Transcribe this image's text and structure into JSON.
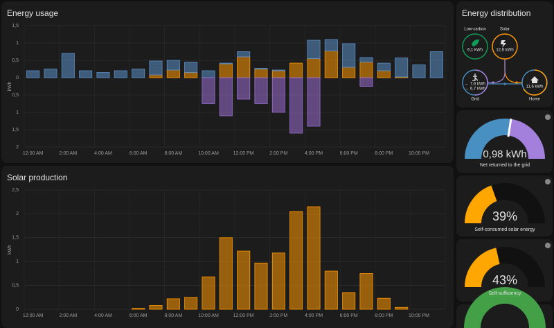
{
  "chart_data": [
    {
      "type": "bar",
      "title": "Energy usage",
      "ylabel": "kWh",
      "stacked": true,
      "grid": true,
      "categories": [
        "12:00 AM",
        null,
        "2:00 AM",
        null,
        "4:00 AM",
        null,
        "6:00 AM",
        null,
        "8:00 AM",
        null,
        "10:00 AM",
        null,
        "12:00 PM",
        null,
        "2:00 PM",
        null,
        "4:00 PM",
        null,
        "6:00 PM",
        null,
        "8:00 PM",
        null,
        "10:00 PM",
        null
      ],
      "series": [
        {
          "color": "#ff9800",
          "values": [
            0,
            0,
            0,
            0,
            0,
            0,
            0,
            0.08,
            0.22,
            0.15,
            0,
            0.4,
            0.6,
            0.25,
            0.2,
            0.42,
            0.55,
            0.77,
            0.3,
            0.45,
            0.2,
            0.02,
            0,
            0
          ]
        },
        {
          "color": "#5b8fc7",
          "values": [
            0.2,
            0.25,
            0.7,
            0.2,
            0.15,
            0.2,
            0.25,
            0.4,
            0.28,
            0.3,
            0.2,
            0.02,
            0.15,
            0.02,
            0.02,
            0,
            0.53,
            0.33,
            0.68,
            0.13,
            0.22,
            0.55,
            0.37,
            0.75
          ]
        },
        {
          "color": "#9b6fd4",
          "values": [
            0,
            0,
            0,
            0,
            0,
            0,
            0,
            0,
            0,
            0,
            -0.75,
            -1.1,
            -0.62,
            -0.75,
            -1.0,
            -1.6,
            -1.4,
            0,
            0,
            -0.25,
            0,
            0,
            0,
            0
          ]
        }
      ],
      "ylim": [
        -2,
        1.5
      ],
      "yticks": [
        {
          "value": -2,
          "label": "2"
        },
        {
          "value": -1.5,
          "label": "1,5"
        },
        {
          "value": -1,
          "label": "1"
        },
        {
          "value": -0.5,
          "label": "0,5"
        },
        0,
        {
          "value": 0.5,
          "label": "0,5"
        },
        1,
        {
          "value": 1.5,
          "label": "1,5"
        }
      ]
    },
    {
      "type": "bar",
      "title": "Solar production",
      "ylabel": "kWh",
      "grid": true,
      "color": "#ff9800",
      "categories": [
        "12:00 AM",
        null,
        "2:00 AM",
        null,
        "4:00 AM",
        null,
        "6:00 AM",
        null,
        "8:00 AM",
        null,
        "10:00 AM",
        null,
        "12:00 PM",
        null,
        "2:00 PM",
        null,
        "4:00 PM",
        null,
        "6:00 PM",
        null,
        "8:00 PM",
        null,
        "10:00 PM",
        null
      ],
      "values": [
        0,
        0,
        0,
        0,
        0,
        0,
        0.02,
        0.08,
        0.22,
        0.25,
        0.68,
        1.5,
        1.22,
        0.97,
        1.18,
        2.05,
        2.15,
        0.8,
        0.35,
        0.75,
        0.23,
        0.04,
        0,
        0
      ],
      "ylim": [
        0,
        2.5
      ],
      "yticks": [
        0,
        {
          "value": 0.5,
          "label": "0,5"
        },
        1,
        {
          "value": 1.5,
          "label": "1,5"
        },
        2,
        {
          "value": 2.5,
          "label": "2,5"
        }
      ]
    }
  ],
  "distribution": {
    "title": "Energy distribution",
    "low_carbon": {
      "label": "Low-carbon",
      "value": "6,1 kWh"
    },
    "solar": {
      "label": "Solar",
      "value": "12,6 kWh"
    },
    "grid": {
      "label": "Grid",
      "in": "← 7,6 kWh",
      "out": "→ 6,7 kWh"
    },
    "home": {
      "label": "Home",
      "value": "11,6 kWh"
    }
  },
  "gauges": [
    {
      "value": 0.98,
      "label": "0,98 kWh",
      "caption": "Net returned to the grid"
    },
    {
      "value": 39,
      "label": "39%",
      "caption": "Self-consumed solar energy"
    },
    {
      "value": 43,
      "label": "43%",
      "caption": "Self-sufficiency"
    }
  ]
}
